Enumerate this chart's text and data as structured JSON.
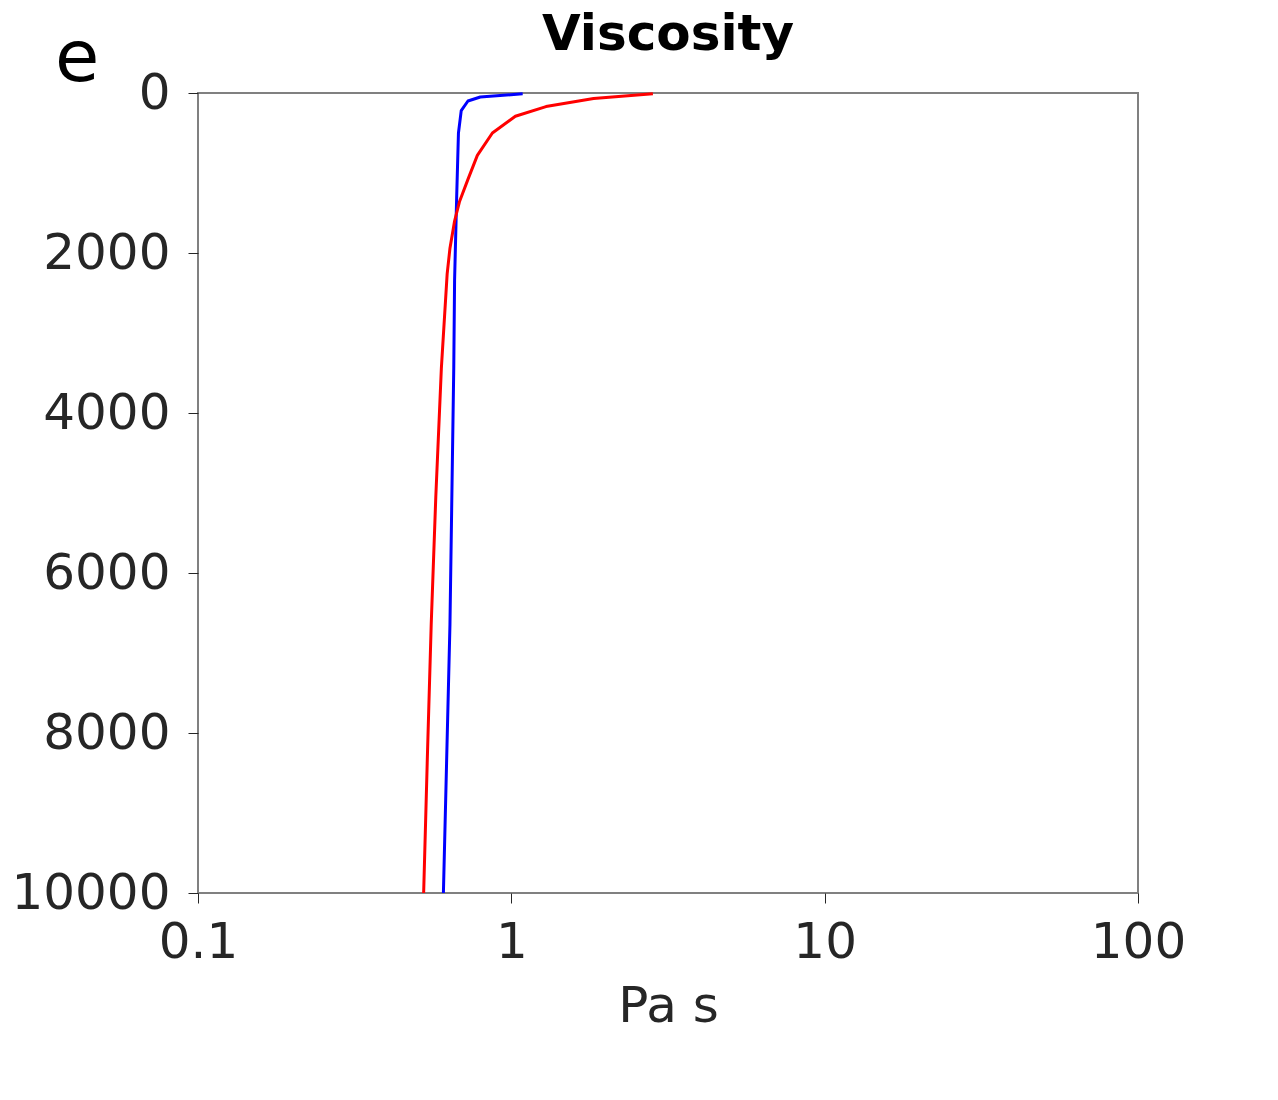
{
  "chart_data": {
    "type": "line",
    "title": "Viscosity",
    "xlabel": "Pa s",
    "annotations": [
      "e"
    ],
    "log": "x",
    "xlim": [
      0.1,
      100
    ],
    "xticks": [
      0.1,
      1,
      10,
      100
    ],
    "ylim": [
      10000,
      0
    ],
    "yticks": [
      0,
      2000,
      4000,
      6000,
      8000,
      10000
    ],
    "grid": false,
    "legend": false,
    "marker": "none",
    "line_style": "solid",
    "series": [
      {
        "color": "#0000ff",
        "x": [
          1.087,
          0.796,
          0.727,
          0.692,
          0.678,
          0.669,
          0.659,
          0.655,
          0.637,
          0.607
        ],
        "values": [
          10,
          50,
          100,
          220,
          500,
          1320,
          2340,
          3440,
          6640,
          10000
        ]
      },
      {
        "color": "#ff0000",
        "x": [
          2.83,
          1.83,
          1.29,
          1.03,
          0.87,
          0.779,
          0.727,
          0.683,
          0.659,
          0.637,
          0.624,
          0.598,
          0.574,
          0.555,
          0.54,
          0.525
        ],
        "values": [
          10,
          70,
          170,
          290,
          500,
          780,
          1080,
          1360,
          1600,
          1940,
          2260,
          3440,
          5050,
          6640,
          8250,
          10000
        ]
      }
    ]
  }
}
